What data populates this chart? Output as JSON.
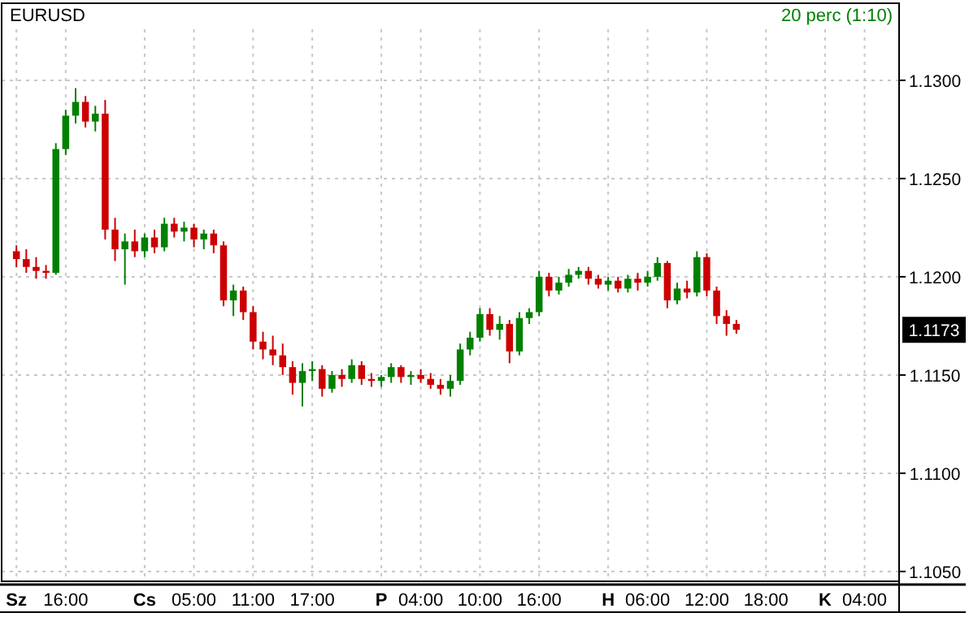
{
  "chart_data": {
    "type": "candlestick",
    "title": "EURUSD",
    "subtitle": "20 perc (1:10)",
    "categories": [
      null,
      "Sz",
      null,
      null,
      null,
      null,
      "16:00",
      null,
      null,
      null,
      null,
      null,
      null,
      null,
      "Cs",
      null,
      null,
      null,
      null,
      "05:00",
      null,
      null,
      null,
      null,
      null,
      "11:00",
      null,
      null,
      null,
      null,
      null,
      "17:00",
      null,
      null,
      null,
      null,
      null,
      null,
      "P",
      null,
      null,
      null,
      "04:00",
      null,
      null,
      null,
      null,
      null,
      "10:00",
      null,
      null,
      null,
      null,
      null,
      "16:00",
      null,
      null,
      null,
      null,
      null,
      null,
      "H",
      null,
      null,
      null,
      "06:00",
      null,
      null,
      null,
      null,
      null,
      "12:00",
      null,
      null,
      null,
      null,
      null,
      "18:00",
      null,
      null,
      null,
      null,
      null,
      "K",
      null,
      null,
      null,
      "04:00",
      null,
      null,
      null
    ],
    "ohlc": [
      null,
      [
        1.1213,
        1.1216,
        1.1205,
        1.1209
      ],
      [
        1.1209,
        1.1214,
        1.1202,
        1.1205
      ],
      [
        1.1205,
        1.121,
        1.1199,
        1.1203
      ],
      [
        1.1203,
        1.1206,
        1.1199,
        1.1202
      ],
      [
        1.1202,
        1.1268,
        1.1201,
        1.1265
      ],
      [
        1.1265,
        1.1285,
        1.1262,
        1.1282
      ],
      [
        1.1282,
        1.1296,
        1.1278,
        1.1289
      ],
      [
        1.1289,
        1.1292,
        1.1276,
        1.1279
      ],
      [
        1.1279,
        1.1287,
        1.1274,
        1.1283
      ],
      [
        1.1283,
        1.129,
        1.1219,
        1.1224
      ],
      [
        1.1224,
        1.123,
        1.1208,
        1.1214
      ],
      [
        1.1214,
        1.1222,
        1.1196,
        1.1218
      ],
      [
        1.1218,
        1.1224,
        1.121,
        1.1213
      ],
      [
        1.1213,
        1.1222,
        1.121,
        1.122
      ],
      [
        1.122,
        1.1224,
        1.1212,
        1.1215
      ],
      [
        1.1215,
        1.123,
        1.1213,
        1.1227
      ],
      [
        1.1227,
        1.123,
        1.122,
        1.1223
      ],
      [
        1.1223,
        1.1228,
        1.1218,
        1.1225
      ],
      [
        1.1225,
        1.1227,
        1.1215,
        1.1219
      ],
      [
        1.1219,
        1.1224,
        1.1214,
        1.1222
      ],
      [
        1.1222,
        1.1224,
        1.1212,
        1.1216
      ],
      [
        1.1216,
        1.1218,
        1.1185,
        1.1188
      ],
      [
        1.1188,
        1.1196,
        1.118,
        1.1193
      ],
      [
        1.1193,
        1.1195,
        1.1178,
        1.1182
      ],
      [
        1.1182,
        1.1185,
        1.1163,
        1.1167
      ],
      [
        1.1167,
        1.1172,
        1.1158,
        1.1163
      ],
      [
        1.1163,
        1.117,
        1.1155,
        1.116
      ],
      [
        1.116,
        1.1166,
        1.115,
        1.1154
      ],
      [
        1.1154,
        1.1157,
        1.114,
        1.1146
      ],
      [
        1.1146,
        1.1156,
        1.1134,
        1.1152
      ],
      [
        1.1152,
        1.1157,
        1.1147,
        1.1153
      ],
      [
        1.1153,
        1.1155,
        1.1139,
        1.1143
      ],
      [
        1.1143,
        1.1152,
        1.1141,
        1.115
      ],
      [
        1.115,
        1.1153,
        1.1144,
        1.1148
      ],
      [
        1.1148,
        1.1158,
        1.1146,
        1.1155
      ],
      [
        1.1155,
        1.1157,
        1.1145,
        1.1148
      ],
      [
        1.1148,
        1.1151,
        1.1144,
        1.1147
      ],
      [
        1.1147,
        1.115,
        1.1144,
        1.1149
      ],
      [
        1.1149,
        1.1156,
        1.1146,
        1.1154
      ],
      [
        1.1154,
        1.1155,
        1.1146,
        1.1149
      ],
      [
        1.1149,
        1.1152,
        1.1145,
        1.115
      ],
      [
        1.115,
        1.1153,
        1.1146,
        1.1148
      ],
      [
        1.1148,
        1.1151,
        1.1143,
        1.1145
      ],
      [
        1.1145,
        1.1148,
        1.114,
        1.1143
      ],
      [
        1.1143,
        1.115,
        1.1139,
        1.1147
      ],
      [
        1.1147,
        1.1166,
        1.1145,
        1.1163
      ],
      [
        1.1163,
        1.1172,
        1.116,
        1.1169
      ],
      [
        1.1169,
        1.1184,
        1.1167,
        1.1181
      ],
      [
        1.1181,
        1.1184,
        1.117,
        1.1173
      ],
      [
        1.1173,
        1.118,
        1.1168,
        1.1176
      ],
      [
        1.1176,
        1.1178,
        1.1156,
        1.1162
      ],
      [
        1.1162,
        1.1182,
        1.116,
        1.1179
      ],
      [
        1.1179,
        1.1184,
        1.1176,
        1.1182
      ],
      [
        1.1182,
        1.1203,
        1.118,
        1.12
      ],
      [
        1.12,
        1.1202,
        1.119,
        1.1193
      ],
      [
        1.1193,
        1.12,
        1.1191,
        1.1197
      ],
      [
        1.1197,
        1.1204,
        1.1195,
        1.1201
      ],
      [
        1.1201,
        1.1205,
        1.1199,
        1.1203
      ],
      [
        1.1203,
        1.1205,
        1.1196,
        1.1199
      ],
      [
        1.1199,
        1.1201,
        1.1194,
        1.1196
      ],
      [
        1.1196,
        1.12,
        1.1193,
        1.1198
      ],
      [
        1.1198,
        1.12,
        1.1192,
        1.1194
      ],
      [
        1.1194,
        1.1201,
        1.1192,
        1.1199
      ],
      [
        1.1199,
        1.1202,
        1.1193,
        1.1197
      ],
      [
        1.1197,
        1.1203,
        1.1195,
        1.12
      ],
      [
        1.12,
        1.121,
        1.1198,
        1.1207
      ],
      [
        1.1207,
        1.1208,
        1.1184,
        1.1188
      ],
      [
        1.1188,
        1.1197,
        1.1186,
        1.1194
      ],
      [
        1.1194,
        1.1198,
        1.1189,
        1.1192
      ],
      [
        1.1192,
        1.1213,
        1.119,
        1.121
      ],
      [
        1.121,
        1.1212,
        1.119,
        1.1193
      ],
      [
        1.1193,
        1.1195,
        1.1176,
        1.118
      ],
      [
        1.118,
        1.1183,
        1.117,
        1.1176
      ],
      [
        1.1176,
        1.1178,
        1.1171,
        1.1173
      ],
      null,
      null,
      null,
      null,
      null,
      null,
      null,
      null,
      null,
      null,
      null,
      null,
      null,
      null,
      null,
      null
    ],
    "colors": [
      null,
      "#cc0000",
      "#cc0000",
      "#cc0000",
      "#cc0000",
      "#008000",
      "#008000",
      "#008000",
      "#cc0000",
      "#008000",
      "#cc0000",
      "#cc0000",
      "#008000",
      "#cc0000",
      "#008000",
      "#cc0000",
      "#008000",
      "#cc0000",
      "#008000",
      "#cc0000",
      "#008000",
      "#cc0000",
      "#cc0000",
      "#008000",
      "#cc0000",
      "#cc0000",
      "#cc0000",
      "#cc0000",
      "#cc0000",
      "#cc0000",
      "#008000",
      "#008000",
      "#cc0000",
      "#008000",
      "#cc0000",
      "#008000",
      "#cc0000",
      "#cc0000",
      "#008000",
      "#008000",
      "#cc0000",
      "#008000",
      "#cc0000",
      "#cc0000",
      "#cc0000",
      "#008000",
      "#008000",
      "#008000",
      "#008000",
      "#cc0000",
      "#008000",
      "#cc0000",
      "#008000",
      "#008000",
      "#008000",
      "#cc0000",
      "#008000",
      "#008000",
      "#008000",
      "#cc0000",
      "#cc0000",
      "#008000",
      "#cc0000",
      "#008000",
      "#cc0000",
      "#008000",
      "#008000",
      "#cc0000",
      "#008000",
      "#cc0000",
      "#008000",
      "#cc0000",
      "#cc0000",
      "#cc0000",
      "#cc0000",
      null,
      null,
      null,
      null,
      null,
      null,
      null,
      null,
      null,
      null,
      null,
      null,
      null,
      null,
      null,
      null
    ],
    "ylim": [
      1.1045,
      1.1326
    ],
    "yticks": [
      {
        "value": 1.105,
        "label": "1.1050"
      },
      {
        "value": 1.11,
        "label": "1.1100"
      },
      {
        "value": 1.115,
        "label": "1.1150"
      },
      {
        "value": 1.12,
        "label": "1.1200"
      },
      {
        "value": 1.125,
        "label": "1.1250"
      },
      {
        "value": 1.13,
        "label": "1.1300"
      }
    ],
    "grid": true,
    "annotations": [
      {
        "text": "1.1173",
        "y": 1.1173
      }
    ]
  }
}
